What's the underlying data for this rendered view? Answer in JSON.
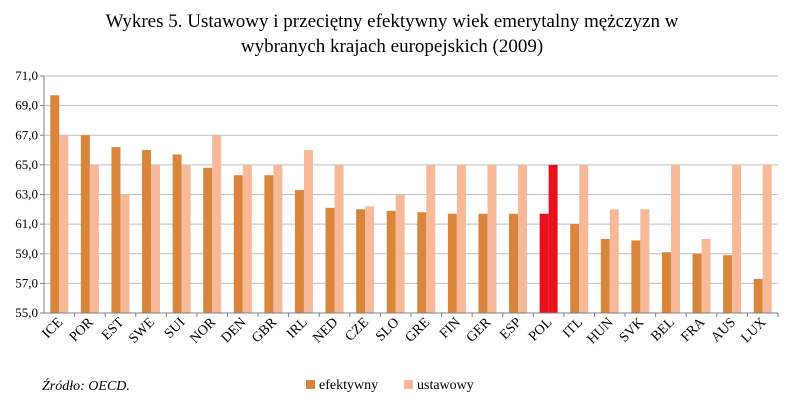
{
  "chart_data": {
    "type": "bar",
    "title": [
      "Wykres 5. Ustawowy i przeciętny efektywny wiek emerytalny mężczyzn w",
      "wybranych krajach europejskich (2009)"
    ],
    "categories": [
      "ICE",
      "POR",
      "EST",
      "SWE",
      "SUI",
      "NOR",
      "DEN",
      "GBR",
      "IRL",
      "NED",
      "CZE",
      "SLO",
      "GRE",
      "FIN",
      "GER",
      "ESP",
      "POL",
      "ITL",
      "HUN",
      "SVK",
      "BEL",
      "FRA",
      "AUS",
      "LUX"
    ],
    "series": [
      {
        "name": "efektywny",
        "color": "#D9853B",
        "values": [
          69.7,
          67.0,
          66.2,
          66.0,
          65.7,
          64.8,
          64.3,
          64.3,
          63.3,
          62.1,
          62.0,
          61.9,
          61.8,
          61.7,
          61.7,
          61.7,
          61.7,
          61.0,
          60.0,
          59.9,
          59.1,
          59.0,
          58.9,
          57.3
        ]
      },
      {
        "name": "ustawowy",
        "color": "#F7B998",
        "values": [
          67.0,
          65.0,
          63.0,
          65.0,
          65.0,
          67.0,
          65.0,
          65.0,
          66.0,
          65.0,
          62.2,
          63.0,
          65.0,
          65.0,
          65.0,
          65.0,
          65.0,
          65.0,
          62.0,
          62.0,
          65.0,
          60.0,
          65.0,
          65.0
        ]
      }
    ],
    "highlight": {
      "category": "POL",
      "color": "#E8101A"
    },
    "yticks": [
      "71,0",
      "69,0",
      "67,0",
      "65,0",
      "63,0",
      "61,0",
      "59,0",
      "57,0",
      "55,0"
    ],
    "ylim": [
      55,
      71
    ],
    "legend_position": "bottom",
    "gridlines": true
  },
  "source_note": "Źródło: OECD."
}
